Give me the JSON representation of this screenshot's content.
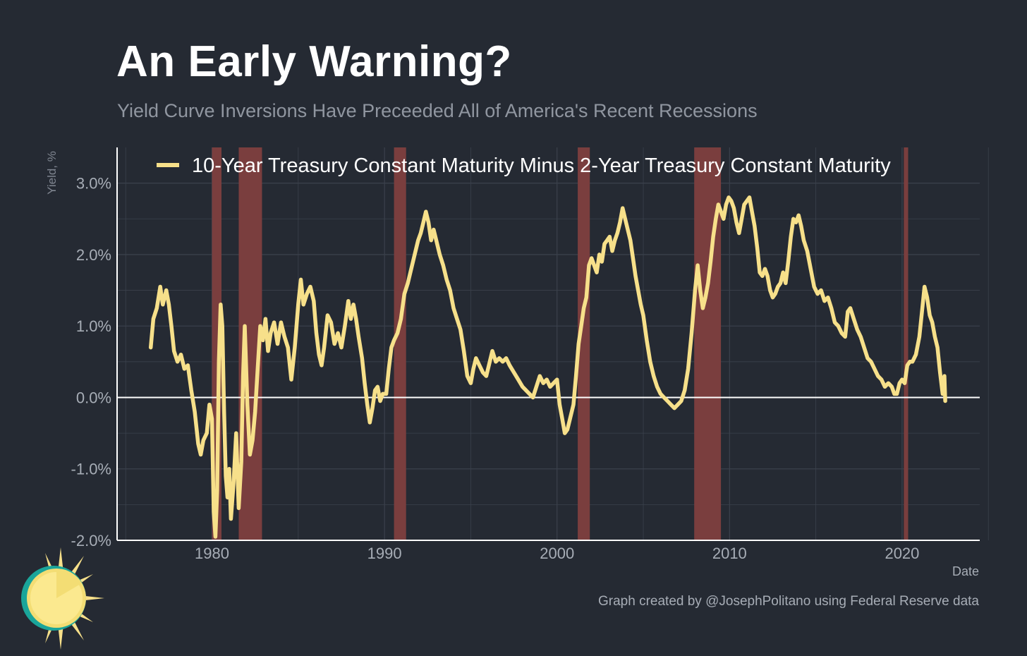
{
  "header": {
    "title": "An Early Warning?",
    "subtitle": "Yield Curve Inversions Have Preceeded All of America's Recent Recessions"
  },
  "footer": {
    "xlabel": "Date",
    "caption": "Graph created by @JosephPolitano using Federal Reserve data",
    "logo_icon": "sun-logo-icon"
  },
  "colors": {
    "background": "#252a33",
    "series": "#f7e08a",
    "recession": "#7a3e3e",
    "zero_line": "#ffffff",
    "grid": "#3b414c"
  },
  "chart_data": {
    "type": "line",
    "title": "An Early Warning?",
    "subtitle": "Yield Curve Inversions Have Preceeded All of America's Recent Recessions",
    "xlabel": "Date",
    "ylabel": "Yield, %",
    "xlim": [
      1974.5,
      2024.5
    ],
    "ylim": [
      -2.0,
      3.5
    ],
    "x_ticks": [
      1980,
      1990,
      2000,
      2010,
      2020
    ],
    "x_tick_labels": [
      "1980",
      "1990",
      "2000",
      "2010",
      "2020"
    ],
    "y_ticks": [
      -2,
      -1,
      0,
      1,
      2,
      3
    ],
    "y_tick_labels": [
      "-2.0%",
      "-1.0%",
      "0.0%",
      "1.0%",
      "2.0%",
      "3.0%"
    ],
    "grid": true,
    "legend_position": "top",
    "recessions": [
      [
        1980.0,
        1980.55
      ],
      [
        1981.55,
        1982.9
      ],
      [
        1990.55,
        1991.25
      ],
      [
        2001.2,
        2001.9
      ],
      [
        2007.95,
        2009.5
      ],
      [
        2020.1,
        2020.35
      ]
    ],
    "series": [
      {
        "name": "10-Year Treasury Constant Maturity Minus 2-Year Treasury Constant Maturity",
        "points": [
          [
            1976.45,
            0.7
          ],
          [
            1976.6,
            1.1
          ],
          [
            1976.8,
            1.25
          ],
          [
            1977.0,
            1.55
          ],
          [
            1977.15,
            1.3
          ],
          [
            1977.35,
            1.5
          ],
          [
            1977.5,
            1.3
          ],
          [
            1977.65,
            1.0
          ],
          [
            1977.8,
            0.65
          ],
          [
            1978.0,
            0.5
          ],
          [
            1978.2,
            0.6
          ],
          [
            1978.4,
            0.4
          ],
          [
            1978.6,
            0.45
          ],
          [
            1978.8,
            0.1
          ],
          [
            1979.0,
            -0.2
          ],
          [
            1979.2,
            -0.65
          ],
          [
            1979.35,
            -0.8
          ],
          [
            1979.5,
            -0.6
          ],
          [
            1979.7,
            -0.5
          ],
          [
            1979.85,
            -0.1
          ],
          [
            1980.0,
            -0.3
          ],
          [
            1980.1,
            -1.6
          ],
          [
            1980.2,
            -1.95
          ],
          [
            1980.3,
            -1.3
          ],
          [
            1980.4,
            0.5
          ],
          [
            1980.5,
            1.3
          ],
          [
            1980.6,
            1.0
          ],
          [
            1980.7,
            -0.2
          ],
          [
            1980.8,
            -1.1
          ],
          [
            1980.9,
            -1.4
          ],
          [
            1981.0,
            -1.0
          ],
          [
            1981.1,
            -1.7
          ],
          [
            1981.25,
            -1.2
          ],
          [
            1981.4,
            -0.5
          ],
          [
            1981.55,
            -1.55
          ],
          [
            1981.7,
            -0.9
          ],
          [
            1981.8,
            0.3
          ],
          [
            1981.9,
            1.0
          ],
          [
            1982.05,
            -0.1
          ],
          [
            1982.2,
            -0.8
          ],
          [
            1982.35,
            -0.6
          ],
          [
            1982.5,
            -0.2
          ],
          [
            1982.65,
            0.4
          ],
          [
            1982.8,
            1.0
          ],
          [
            1982.95,
            0.8
          ],
          [
            1983.1,
            1.1
          ],
          [
            1983.25,
            0.65
          ],
          [
            1983.4,
            0.9
          ],
          [
            1983.6,
            1.05
          ],
          [
            1983.8,
            0.75
          ],
          [
            1984.0,
            1.05
          ],
          [
            1984.2,
            0.85
          ],
          [
            1984.4,
            0.7
          ],
          [
            1984.6,
            0.25
          ],
          [
            1984.8,
            0.7
          ],
          [
            1985.0,
            1.3
          ],
          [
            1985.15,
            1.65
          ],
          [
            1985.3,
            1.3
          ],
          [
            1985.5,
            1.45
          ],
          [
            1985.7,
            1.55
          ],
          [
            1985.9,
            1.35
          ],
          [
            1986.05,
            0.9
          ],
          [
            1986.2,
            0.6
          ],
          [
            1986.35,
            0.45
          ],
          [
            1986.5,
            0.7
          ],
          [
            1986.7,
            1.15
          ],
          [
            1986.9,
            1.05
          ],
          [
            1987.1,
            0.75
          ],
          [
            1987.3,
            0.9
          ],
          [
            1987.5,
            0.7
          ],
          [
            1987.7,
            1.0
          ],
          [
            1987.9,
            1.35
          ],
          [
            1988.05,
            1.1
          ],
          [
            1988.2,
            1.3
          ],
          [
            1988.35,
            1.1
          ],
          [
            1988.5,
            0.85
          ],
          [
            1988.7,
            0.55
          ],
          [
            1988.85,
            0.2
          ],
          [
            1989.0,
            -0.1
          ],
          [
            1989.15,
            -0.35
          ],
          [
            1989.3,
            -0.15
          ],
          [
            1989.45,
            0.1
          ],
          [
            1989.6,
            0.15
          ],
          [
            1989.75,
            -0.05
          ],
          [
            1989.9,
            0.05
          ],
          [
            1990.1,
            0.05
          ],
          [
            1990.25,
            0.4
          ],
          [
            1990.4,
            0.7
          ],
          [
            1990.55,
            0.8
          ],
          [
            1990.75,
            0.9
          ],
          [
            1990.95,
            1.1
          ],
          [
            1991.15,
            1.45
          ],
          [
            1991.35,
            1.6
          ],
          [
            1991.55,
            1.8
          ],
          [
            1991.75,
            2.0
          ],
          [
            1991.95,
            2.2
          ],
          [
            1992.1,
            2.3
          ],
          [
            1992.25,
            2.45
          ],
          [
            1992.4,
            2.6
          ],
          [
            1992.55,
            2.45
          ],
          [
            1992.7,
            2.2
          ],
          [
            1992.85,
            2.35
          ],
          [
            1993.0,
            2.2
          ],
          [
            1993.2,
            2.0
          ],
          [
            1993.4,
            1.85
          ],
          [
            1993.6,
            1.65
          ],
          [
            1993.8,
            1.5
          ],
          [
            1994.0,
            1.25
          ],
          [
            1994.2,
            1.1
          ],
          [
            1994.4,
            0.95
          ],
          [
            1994.6,
            0.65
          ],
          [
            1994.8,
            0.3
          ],
          [
            1995.0,
            0.2
          ],
          [
            1995.15,
            0.4
          ],
          [
            1995.3,
            0.55
          ],
          [
            1995.5,
            0.45
          ],
          [
            1995.7,
            0.35
          ],
          [
            1995.9,
            0.3
          ],
          [
            1996.05,
            0.45
          ],
          [
            1996.25,
            0.65
          ],
          [
            1996.45,
            0.5
          ],
          [
            1996.65,
            0.55
          ],
          [
            1996.85,
            0.5
          ],
          [
            1997.05,
            0.55
          ],
          [
            1997.25,
            0.45
          ],
          [
            1997.5,
            0.35
          ],
          [
            1997.75,
            0.25
          ],
          [
            1998.0,
            0.15
          ],
          [
            1998.2,
            0.1
          ],
          [
            1998.4,
            0.05
          ],
          [
            1998.6,
            0.0
          ],
          [
            1998.8,
            0.15
          ],
          [
            1999.0,
            0.3
          ],
          [
            1999.2,
            0.2
          ],
          [
            1999.4,
            0.25
          ],
          [
            1999.6,
            0.15
          ],
          [
            1999.8,
            0.2
          ],
          [
            2000.0,
            0.25
          ],
          [
            2000.15,
            -0.1
          ],
          [
            2000.3,
            -0.3
          ],
          [
            2000.45,
            -0.5
          ],
          [
            2000.6,
            -0.45
          ],
          [
            2000.75,
            -0.3
          ],
          [
            2000.95,
            -0.1
          ],
          [
            2001.1,
            0.3
          ],
          [
            2001.25,
            0.75
          ],
          [
            2001.4,
            1.0
          ],
          [
            2001.55,
            1.25
          ],
          [
            2001.7,
            1.4
          ],
          [
            2001.85,
            1.85
          ],
          [
            2002.0,
            1.95
          ],
          [
            2002.15,
            1.85
          ],
          [
            2002.3,
            1.75
          ],
          [
            2002.45,
            2.0
          ],
          [
            2002.6,
            1.9
          ],
          [
            2002.75,
            2.15
          ],
          [
            2002.9,
            2.2
          ],
          [
            2003.05,
            2.25
          ],
          [
            2003.2,
            2.05
          ],
          [
            2003.35,
            2.2
          ],
          [
            2003.5,
            2.3
          ],
          [
            2003.65,
            2.45
          ],
          [
            2003.8,
            2.65
          ],
          [
            2003.95,
            2.5
          ],
          [
            2004.1,
            2.35
          ],
          [
            2004.25,
            2.2
          ],
          [
            2004.4,
            1.95
          ],
          [
            2004.55,
            1.7
          ],
          [
            2004.7,
            1.5
          ],
          [
            2004.85,
            1.3
          ],
          [
            2005.0,
            1.15
          ],
          [
            2005.2,
            0.8
          ],
          [
            2005.4,
            0.5
          ],
          [
            2005.6,
            0.3
          ],
          [
            2005.8,
            0.15
          ],
          [
            2006.0,
            0.05
          ],
          [
            2006.2,
            0.0
          ],
          [
            2006.4,
            -0.05
          ],
          [
            2006.6,
            -0.1
          ],
          [
            2006.8,
            -0.15
          ],
          [
            2007.0,
            -0.1
          ],
          [
            2007.2,
            -0.05
          ],
          [
            2007.4,
            0.1
          ],
          [
            2007.6,
            0.4
          ],
          [
            2007.8,
            0.9
          ],
          [
            2008.0,
            1.5
          ],
          [
            2008.15,
            1.85
          ],
          [
            2008.3,
            1.5
          ],
          [
            2008.45,
            1.25
          ],
          [
            2008.6,
            1.4
          ],
          [
            2008.75,
            1.6
          ],
          [
            2008.9,
            1.9
          ],
          [
            2009.05,
            2.25
          ],
          [
            2009.2,
            2.5
          ],
          [
            2009.35,
            2.7
          ],
          [
            2009.5,
            2.6
          ],
          [
            2009.65,
            2.5
          ],
          [
            2009.8,
            2.7
          ],
          [
            2009.95,
            2.8
          ],
          [
            2010.1,
            2.75
          ],
          [
            2010.25,
            2.65
          ],
          [
            2010.4,
            2.45
          ],
          [
            2010.55,
            2.3
          ],
          [
            2010.7,
            2.5
          ],
          [
            2010.85,
            2.7
          ],
          [
            2011.0,
            2.75
          ],
          [
            2011.15,
            2.8
          ],
          [
            2011.3,
            2.6
          ],
          [
            2011.45,
            2.4
          ],
          [
            2011.6,
            2.1
          ],
          [
            2011.75,
            1.75
          ],
          [
            2011.9,
            1.7
          ],
          [
            2012.05,
            1.8
          ],
          [
            2012.2,
            1.7
          ],
          [
            2012.35,
            1.5
          ],
          [
            2012.5,
            1.4
          ],
          [
            2012.65,
            1.45
          ],
          [
            2012.8,
            1.55
          ],
          [
            2012.95,
            1.6
          ],
          [
            2013.1,
            1.75
          ],
          [
            2013.25,
            1.6
          ],
          [
            2013.4,
            1.9
          ],
          [
            2013.55,
            2.25
          ],
          [
            2013.7,
            2.5
          ],
          [
            2013.85,
            2.45
          ],
          [
            2014.0,
            2.55
          ],
          [
            2014.15,
            2.4
          ],
          [
            2014.3,
            2.2
          ],
          [
            2014.5,
            2.05
          ],
          [
            2014.7,
            1.8
          ],
          [
            2014.9,
            1.55
          ],
          [
            2015.1,
            1.45
          ],
          [
            2015.3,
            1.5
          ],
          [
            2015.5,
            1.35
          ],
          [
            2015.7,
            1.4
          ],
          [
            2015.9,
            1.25
          ],
          [
            2016.1,
            1.05
          ],
          [
            2016.3,
            1.0
          ],
          [
            2016.5,
            0.9
          ],
          [
            2016.7,
            0.85
          ],
          [
            2016.85,
            1.2
          ],
          [
            2017.0,
            1.25
          ],
          [
            2017.2,
            1.1
          ],
          [
            2017.4,
            0.95
          ],
          [
            2017.6,
            0.85
          ],
          [
            2017.8,
            0.7
          ],
          [
            2018.0,
            0.55
          ],
          [
            2018.2,
            0.5
          ],
          [
            2018.4,
            0.4
          ],
          [
            2018.6,
            0.3
          ],
          [
            2018.8,
            0.25
          ],
          [
            2019.0,
            0.15
          ],
          [
            2019.2,
            0.2
          ],
          [
            2019.4,
            0.15
          ],
          [
            2019.55,
            0.05
          ],
          [
            2019.7,
            0.05
          ],
          [
            2019.85,
            0.2
          ],
          [
            2020.0,
            0.25
          ],
          [
            2020.15,
            0.2
          ],
          [
            2020.3,
            0.45
          ],
          [
            2020.45,
            0.5
          ],
          [
            2020.6,
            0.5
          ],
          [
            2020.8,
            0.6
          ],
          [
            2021.0,
            0.85
          ],
          [
            2021.15,
            1.2
          ],
          [
            2021.3,
            1.55
          ],
          [
            2021.45,
            1.4
          ],
          [
            2021.6,
            1.15
          ],
          [
            2021.75,
            1.05
          ],
          [
            2021.9,
            0.85
          ],
          [
            2022.05,
            0.7
          ],
          [
            2022.2,
            0.35
          ],
          [
            2022.35,
            0.05
          ],
          [
            2022.45,
            0.3
          ],
          [
            2022.5,
            -0.05
          ]
        ]
      }
    ]
  }
}
